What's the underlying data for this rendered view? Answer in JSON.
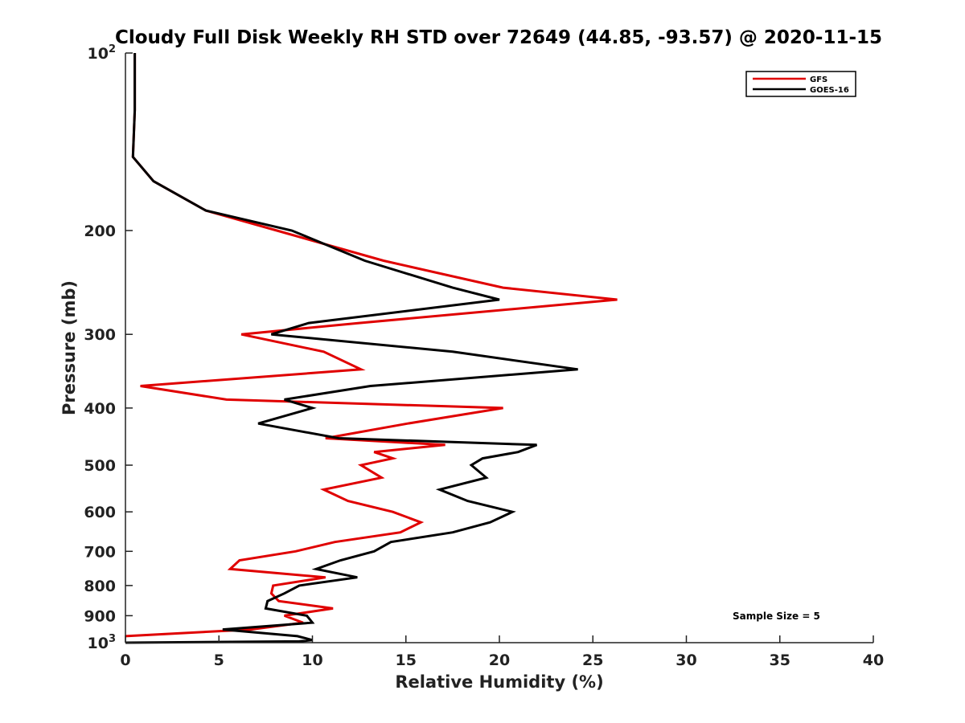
{
  "chart_data": {
    "type": "line",
    "title": "Cloudy Full Disk Weekly RH STD over 72649 (44.85, -93.57) @ 2020-11-15",
    "xlabel": "Relative Humidity (%)",
    "ylabel": "Pressure (mb)",
    "xlim": [
      0,
      40
    ],
    "ylim": [
      100,
      1000
    ],
    "y_scale": "log",
    "y_reversed": true,
    "grid": false,
    "legend_position": "top-right",
    "x_ticks": [
      0,
      5,
      10,
      15,
      20,
      25,
      30,
      35,
      40
    ],
    "x_tick_labels": [
      "0",
      "5",
      "10",
      "15",
      "20",
      "25",
      "30",
      "35",
      "40"
    ],
    "y_ticks": [
      100,
      200,
      300,
      400,
      500,
      600,
      700,
      800,
      900,
      1000
    ],
    "y_tick_labels": [
      {
        "base": "10",
        "exp": "2"
      },
      {
        "base": "200",
        "exp": ""
      },
      {
        "base": "300",
        "exp": ""
      },
      {
        "base": "400",
        "exp": ""
      },
      {
        "base": "500",
        "exp": ""
      },
      {
        "base": "600",
        "exp": ""
      },
      {
        "base": "700",
        "exp": ""
      },
      {
        "base": "800",
        "exp": ""
      },
      {
        "base": "900",
        "exp": ""
      },
      {
        "base": "10",
        "exp": "3"
      }
    ],
    "annotation": "Sample Size = 5",
    "series": [
      {
        "name": "GFS",
        "color": "#e00000",
        "points": [
          [
            0.5,
            100
          ],
          [
            0.5,
            125
          ],
          [
            0.4,
            150
          ],
          [
            1.5,
            165
          ],
          [
            4.3,
            185
          ],
          [
            8.1,
            200
          ],
          [
            13.8,
            225
          ],
          [
            20.2,
            250
          ],
          [
            26.3,
            262
          ],
          [
            12.5,
            287
          ],
          [
            6.2,
            300
          ],
          [
            10.6,
            321
          ],
          [
            12.6,
            344
          ],
          [
            0.8,
            367
          ],
          [
            5.4,
            387
          ],
          [
            20.2,
            400
          ],
          [
            15.1,
            425
          ],
          [
            10.7,
            450
          ],
          [
            17.1,
            462
          ],
          [
            13.3,
            475
          ],
          [
            14.3,
            487
          ],
          [
            12.6,
            500
          ],
          [
            13.7,
            525
          ],
          [
            10.6,
            550
          ],
          [
            11.9,
            575
          ],
          [
            14.3,
            600
          ],
          [
            15.8,
            625
          ],
          [
            14.7,
            650
          ],
          [
            11.2,
            675
          ],
          [
            9.1,
            700
          ],
          [
            6.1,
            725
          ],
          [
            5.6,
            750
          ],
          [
            10.7,
            775
          ],
          [
            7.9,
            800
          ],
          [
            7.8,
            825
          ],
          [
            8.2,
            850
          ],
          [
            11.1,
            875
          ],
          [
            8.5,
            900
          ],
          [
            9.5,
            925
          ],
          [
            6.7,
            950
          ],
          [
            0.0,
            975
          ]
        ]
      },
      {
        "name": "GOES-16",
        "color": "#000000",
        "points": [
          [
            0.5,
            100
          ],
          [
            0.5,
            125
          ],
          [
            0.4,
            150
          ],
          [
            1.5,
            165
          ],
          [
            4.3,
            185
          ],
          [
            8.9,
            200
          ],
          [
            12.8,
            225
          ],
          [
            17.5,
            250
          ],
          [
            20.0,
            262
          ],
          [
            9.8,
            287
          ],
          [
            7.8,
            300
          ],
          [
            17.5,
            321
          ],
          [
            24.2,
            344
          ],
          [
            13.1,
            367
          ],
          [
            8.5,
            387
          ],
          [
            10.0,
            400
          ],
          [
            7.1,
            425
          ],
          [
            11.4,
            450
          ],
          [
            22.0,
            462
          ],
          [
            21.0,
            475
          ],
          [
            19.1,
            487
          ],
          [
            18.5,
            500
          ],
          [
            19.3,
            525
          ],
          [
            16.8,
            550
          ],
          [
            18.3,
            575
          ],
          [
            20.7,
            600
          ],
          [
            19.5,
            625
          ],
          [
            17.5,
            650
          ],
          [
            14.2,
            675
          ],
          [
            13.3,
            700
          ],
          [
            11.5,
            725
          ],
          [
            10.2,
            750
          ],
          [
            12.4,
            775
          ],
          [
            9.3,
            800
          ],
          [
            8.5,
            825
          ],
          [
            7.6,
            850
          ],
          [
            7.5,
            875
          ],
          [
            9.7,
            900
          ],
          [
            10.0,
            925
          ],
          [
            5.2,
            950
          ],
          [
            9.2,
            975
          ],
          [
            10.0,
            990
          ],
          [
            9.3,
            995
          ],
          [
            0.0,
            1000
          ]
        ]
      }
    ]
  }
}
